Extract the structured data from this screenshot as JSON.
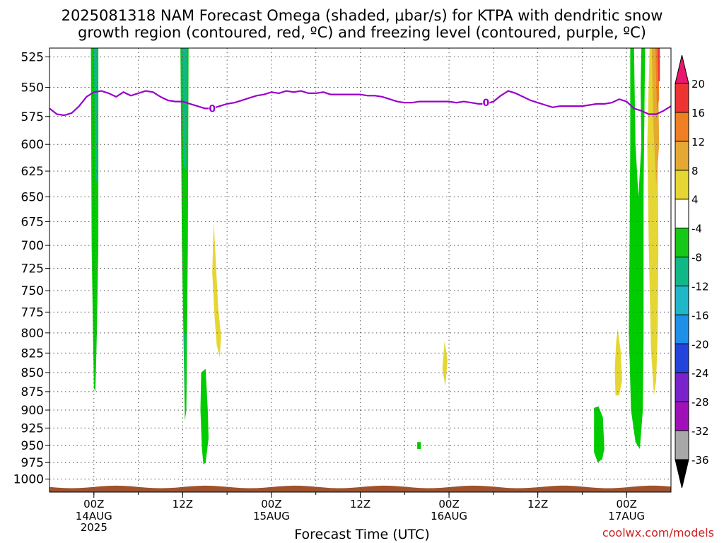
{
  "title": {
    "line1": "2025081318 NAM Forecast Omega (shaded, μbar/s) for KTPA with dendritic snow",
    "line2": "growth region (contoured, red, ºC) and freezing level (contoured, purple, ºC)"
  },
  "credit": "coolwx.com/models",
  "chart_data": {
    "type": "heatmap",
    "title": "2025081318 NAM Forecast Omega (shaded, μbar/s) for KTPA with dendritic snow growth region (contoured, red, ºC) and freezing level (contoured, purple, ºC)",
    "xlabel": "Forecast Time (UTC)",
    "ylabel": "",
    "x_range_hours": [
      -6,
      78
    ],
    "y_axis": {
      "scale": "log-pressure",
      "inverted": true,
      "range_hpa": [
        518,
        1020
      ],
      "ticks": [
        525,
        550,
        575,
        600,
        625,
        650,
        675,
        700,
        725,
        750,
        775,
        800,
        825,
        850,
        875,
        900,
        925,
        950,
        975,
        1000
      ]
    },
    "x_ticks": [
      {
        "hour": 0,
        "label": "00Z",
        "sub": [
          "14AUG",
          "2025"
        ]
      },
      {
        "hour": 12,
        "label": "12Z",
        "sub": []
      },
      {
        "hour": 24,
        "label": "00Z",
        "sub": [
          "15AUG"
        ]
      },
      {
        "hour": 36,
        "label": "12Z",
        "sub": []
      },
      {
        "hour": 48,
        "label": "00Z",
        "sub": [
          "16AUG"
        ]
      },
      {
        "hour": 60,
        "label": "12Z",
        "sub": []
      },
      {
        "hour": 72,
        "label": "00Z",
        "sub": [
          "17AUG"
        ]
      }
    ],
    "colorbar": {
      "labels": [
        20,
        16,
        12,
        8,
        4,
        -4,
        -8,
        -12,
        -16,
        -20,
        -24,
        -28,
        -32,
        -36
      ],
      "colors": [
        "#e8176f",
        "#ee3333",
        "#f07e22",
        "#e5a933",
        "#e5d633",
        "#ffffff",
        "#18c818",
        "#10b888",
        "#20b8c8",
        "#1e90e8",
        "#2244dd",
        "#7a22cc",
        "#a010b8",
        "#a8a8a8",
        "#000000"
      ]
    },
    "omega_regions": [
      {
        "name": "14AUG00Z column",
        "value_class": "-8 to -4",
        "color": "#00cc00",
        "points": [
          [
            -0.4,
            518
          ],
          [
            0.6,
            518
          ],
          [
            0.6,
            700
          ],
          [
            0.4,
            800
          ],
          [
            0.2,
            875
          ],
          [
            0,
            870
          ],
          [
            -0.3,
            700
          ]
        ]
      },
      {
        "name": "14AUG00Z core",
        "value_class": "-12 to -8",
        "color": "#10b888",
        "points": [
          [
            0.0,
            518
          ],
          [
            0.5,
            518
          ],
          [
            0.5,
            640
          ],
          [
            0.2,
            630
          ]
        ]
      },
      {
        "name": "14AUG12Z column",
        "value_class": "-8 to -4",
        "color": "#00cc00",
        "points": [
          [
            11.7,
            518
          ],
          [
            12.8,
            518
          ],
          [
            12.7,
            700
          ],
          [
            12.6,
            800
          ],
          [
            12.5,
            900
          ],
          [
            12.3,
            915
          ],
          [
            11.9,
            700
          ]
        ]
      },
      {
        "name": "14AUG12Z core",
        "value_class": "-12 to -8",
        "color": "#10b888",
        "points": [
          [
            11.9,
            518
          ],
          [
            12.6,
            518
          ],
          [
            12.5,
            625
          ],
          [
            12.1,
            620
          ]
        ]
      },
      {
        "name": "14AUG12Z base",
        "value_class": "-12 to -8",
        "color": "#10b888",
        "points": [
          [
            12.2,
            800
          ],
          [
            12.5,
            800
          ],
          [
            12.4,
            870
          ],
          [
            12.3,
            880
          ]
        ]
      },
      {
        "name": "14AUG15Z cell",
        "value_class": "-8 to -4",
        "color": "#00cc00",
        "points": [
          [
            14.5,
            850
          ],
          [
            15.1,
            845
          ],
          [
            15.4,
            900
          ],
          [
            15.5,
            940
          ],
          [
            15.1,
            975
          ],
          [
            14.8,
            978
          ],
          [
            14.6,
            955
          ],
          [
            14.4,
            900
          ]
        ]
      },
      {
        "name": "14AUG16Z updraft",
        "value_class": "4 to 8",
        "color": "#e5d633",
        "points": [
          [
            16.2,
            675
          ],
          [
            16.5,
            720
          ],
          [
            16.8,
            770
          ],
          [
            17.2,
            805
          ],
          [
            17.0,
            830
          ],
          [
            16.6,
            815
          ],
          [
            16.3,
            780
          ],
          [
            16.0,
            730
          ]
        ]
      },
      {
        "name": "15AUG23Z updraft",
        "value_class": "4 to 8",
        "color": "#e5d633",
        "points": [
          [
            47.4,
            810
          ],
          [
            47.8,
            835
          ],
          [
            47.5,
            868
          ],
          [
            47.1,
            845
          ]
        ]
      },
      {
        "name": "15AUG21Z small cell",
        "value_class": "-8 to -4",
        "color": "#00cc00",
        "points": [
          [
            43.7,
            945
          ],
          [
            44.2,
            945
          ],
          [
            44.2,
            955
          ],
          [
            43.7,
            955
          ]
        ]
      },
      {
        "name": "16AUG22Z updraft",
        "value_class": "4 to 8",
        "color": "#e5d633",
        "points": [
          [
            70.8,
            795
          ],
          [
            71.2,
            822
          ],
          [
            71.4,
            860
          ],
          [
            71.0,
            880
          ],
          [
            70.5,
            880
          ],
          [
            70.4,
            845
          ],
          [
            70.6,
            810
          ]
        ]
      },
      {
        "name": "16AUG21Z cell",
        "value_class": "-8 to -4",
        "color": "#00cc00",
        "points": [
          [
            67.6,
            897
          ],
          [
            68.2,
            895
          ],
          [
            68.8,
            910
          ],
          [
            69.0,
            955
          ],
          [
            68.7,
            970
          ],
          [
            68.1,
            975
          ],
          [
            67.6,
            960
          ]
        ]
      },
      {
        "name": "17AUG00Z column",
        "value_class": "-8 to -4",
        "color": "#00cc00",
        "points": [
          [
            72.5,
            518
          ],
          [
            73.0,
            518
          ],
          [
            73.2,
            600
          ],
          [
            73.6,
            650
          ],
          [
            74.0,
            600
          ],
          [
            73.9,
            550
          ],
          [
            74.0,
            518
          ],
          [
            74.5,
            518
          ],
          [
            74.3,
            640
          ],
          [
            74.3,
            700
          ],
          [
            74.3,
            800
          ],
          [
            74.2,
            900
          ],
          [
            73.8,
            955
          ],
          [
            73.2,
            945
          ],
          [
            72.6,
            900
          ],
          [
            72.3,
            800
          ],
          [
            72.4,
            700
          ],
          [
            72.5,
            600
          ]
        ]
      },
      {
        "name": "17AUG03Z updraft",
        "value_class": "4 to 8",
        "color": "#e5d633",
        "points": [
          [
            75.1,
            518
          ],
          [
            76.0,
            518
          ],
          [
            76.2,
            600
          ],
          [
            76.3,
            700
          ],
          [
            76.2,
            800
          ],
          [
            76.0,
            860
          ],
          [
            75.7,
            880
          ],
          [
            75.3,
            820
          ],
          [
            75.0,
            700
          ],
          [
            74.8,
            600
          ]
        ]
      },
      {
        "name": "17AUG03Z core",
        "value_class": "8 to 12",
        "color": "#e5a933",
        "points": [
          [
            75.4,
            518
          ],
          [
            76.2,
            518
          ],
          [
            76.4,
            600
          ],
          [
            76.0,
            640
          ],
          [
            75.6,
            580
          ]
        ]
      },
      {
        "name": "17AUG03Z core2",
        "value_class": "12 to 16",
        "color": "#f07e22",
        "points": [
          [
            75.9,
            518
          ],
          [
            76.3,
            518
          ],
          [
            76.4,
            560
          ],
          [
            76.1,
            570
          ]
        ]
      },
      {
        "name": "17AUG03Z max",
        "value_class": "16 to 20",
        "color": "#ee3333",
        "points": [
          [
            76.2,
            518
          ],
          [
            76.5,
            518
          ],
          [
            76.5,
            545
          ],
          [
            76.3,
            545
          ]
        ]
      }
    ],
    "freezing_level": {
      "label": "0",
      "color": "#9900cc",
      "points": [
        [
          -6,
          568
        ],
        [
          -5,
          573
        ],
        [
          -4,
          574
        ],
        [
          -3,
          572
        ],
        [
          -2,
          566
        ],
        [
          -1,
          558
        ],
        [
          0,
          554
        ],
        [
          1,
          553
        ],
        [
          2,
          555
        ],
        [
          3,
          558
        ],
        [
          4,
          554
        ],
        [
          5,
          557
        ],
        [
          6,
          555
        ],
        [
          7,
          553
        ],
        [
          8,
          554
        ],
        [
          9,
          558
        ],
        [
          10,
          561
        ],
        [
          11,
          562
        ],
        [
          12,
          562
        ],
        [
          13,
          564
        ],
        [
          14,
          566
        ],
        [
          15,
          568
        ],
        [
          16,
          568
        ],
        [
          17,
          566
        ],
        [
          18,
          564
        ],
        [
          19,
          563
        ],
        [
          20,
          561
        ],
        [
          21,
          559
        ],
        [
          22,
          557
        ],
        [
          23,
          556
        ],
        [
          24,
          554
        ],
        [
          25,
          555
        ],
        [
          26,
          553
        ],
        [
          27,
          554
        ],
        [
          28,
          553
        ],
        [
          29,
          555
        ],
        [
          30,
          555
        ],
        [
          31,
          554
        ],
        [
          32,
          556
        ],
        [
          33,
          556
        ],
        [
          34,
          556
        ],
        [
          35,
          556
        ],
        [
          36,
          556
        ],
        [
          37,
          557
        ],
        [
          38,
          557
        ],
        [
          39,
          558
        ],
        [
          40,
          560
        ],
        [
          41,
          562
        ],
        [
          42,
          563
        ],
        [
          43,
          563
        ],
        [
          44,
          562
        ],
        [
          45,
          562
        ],
        [
          46,
          562
        ],
        [
          47,
          562
        ],
        [
          48,
          562
        ],
        [
          49,
          563
        ],
        [
          50,
          562
        ],
        [
          51,
          563
        ],
        [
          52,
          564
        ],
        [
          53,
          564
        ],
        [
          54,
          562
        ],
        [
          55,
          557
        ],
        [
          56,
          553
        ],
        [
          57,
          555
        ],
        [
          58,
          558
        ],
        [
          59,
          561
        ],
        [
          60,
          563
        ],
        [
          61,
          565
        ],
        [
          62,
          567
        ],
        [
          63,
          566
        ],
        [
          64,
          566
        ],
        [
          65,
          566
        ],
        [
          66,
          566
        ],
        [
          67,
          565
        ],
        [
          68,
          564
        ],
        [
          69,
          564
        ],
        [
          70,
          563
        ],
        [
          71,
          560
        ],
        [
          72,
          562
        ],
        [
          73,
          568
        ],
        [
          74,
          570
        ],
        [
          75,
          573
        ],
        [
          76,
          573
        ],
        [
          77,
          570
        ],
        [
          78,
          566
        ]
      ]
    },
    "contour_labels": [
      {
        "x": 16,
        "p": 568,
        "text": "0"
      },
      {
        "x": 53,
        "p": 563,
        "text": "0"
      }
    ],
    "terrain": {
      "color": "#a0522d",
      "top_hpa_min": 1010,
      "top_hpa_max": 1014
    }
  }
}
